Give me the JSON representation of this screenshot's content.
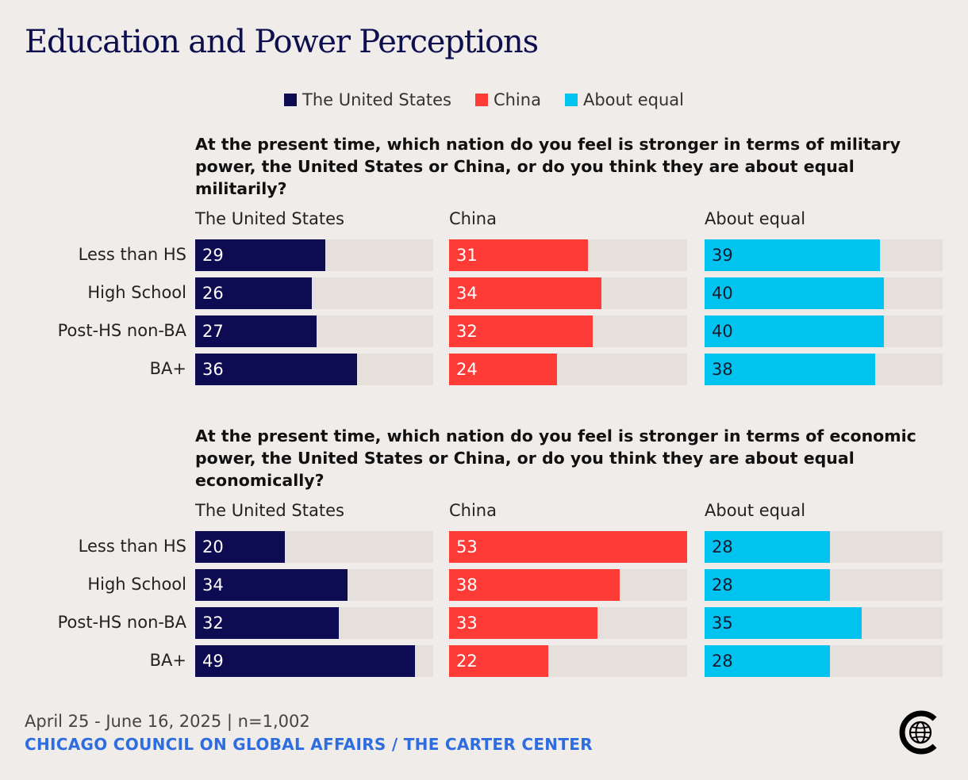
{
  "title": "Education and Power Perceptions",
  "colors": {
    "us": "#0d0c52",
    "china": "#ff3b38",
    "equal": "#00c3f0",
    "track": "#e5e0dc"
  },
  "chart_data": [
    {
      "type": "bar",
      "title": "At the present time, which nation do you feel is stronger in terms of military power, the United States or China, or do you think they are about equal militarily?",
      "categories": [
        "Less than HS",
        "High School",
        "Post-HS non-BA",
        "BA+"
      ],
      "series": [
        {
          "name": "The United States",
          "values": [
            29,
            26,
            27,
            36
          ]
        },
        {
          "name": "China",
          "values": [
            31,
            34,
            32,
            24
          ]
        },
        {
          "name": "About equal",
          "values": [
            39,
            40,
            40,
            38
          ]
        }
      ],
      "xlim": [
        0,
        53
      ],
      "legend": "top-center"
    },
    {
      "type": "bar",
      "title": "At the present time, which nation do you feel is stronger in terms of economic power, the United States or China, or do you think they are about equal economically?",
      "categories": [
        "Less than HS",
        "High School",
        "Post-HS non-BA",
        "BA+"
      ],
      "series": [
        {
          "name": "The United States",
          "values": [
            20,
            34,
            32,
            49
          ]
        },
        {
          "name": "China",
          "values": [
            53,
            38,
            33,
            22
          ]
        },
        {
          "name": "About equal",
          "values": [
            28,
            28,
            35,
            28
          ]
        }
      ],
      "xlim": [
        0,
        53
      ],
      "legend": "top-center"
    }
  ],
  "legend": [
    {
      "label": "The United States",
      "key": "us"
    },
    {
      "label": "China",
      "key": "china"
    },
    {
      "label": "About equal",
      "key": "equal"
    }
  ],
  "footer": {
    "date": "April 25 - June 16, 2025 | n=1,002",
    "org": "CHICAGO COUNCIL ON GLOBAL AFFAIRS / THE CARTER CENTER"
  },
  "logo_icon": "globe-icon"
}
